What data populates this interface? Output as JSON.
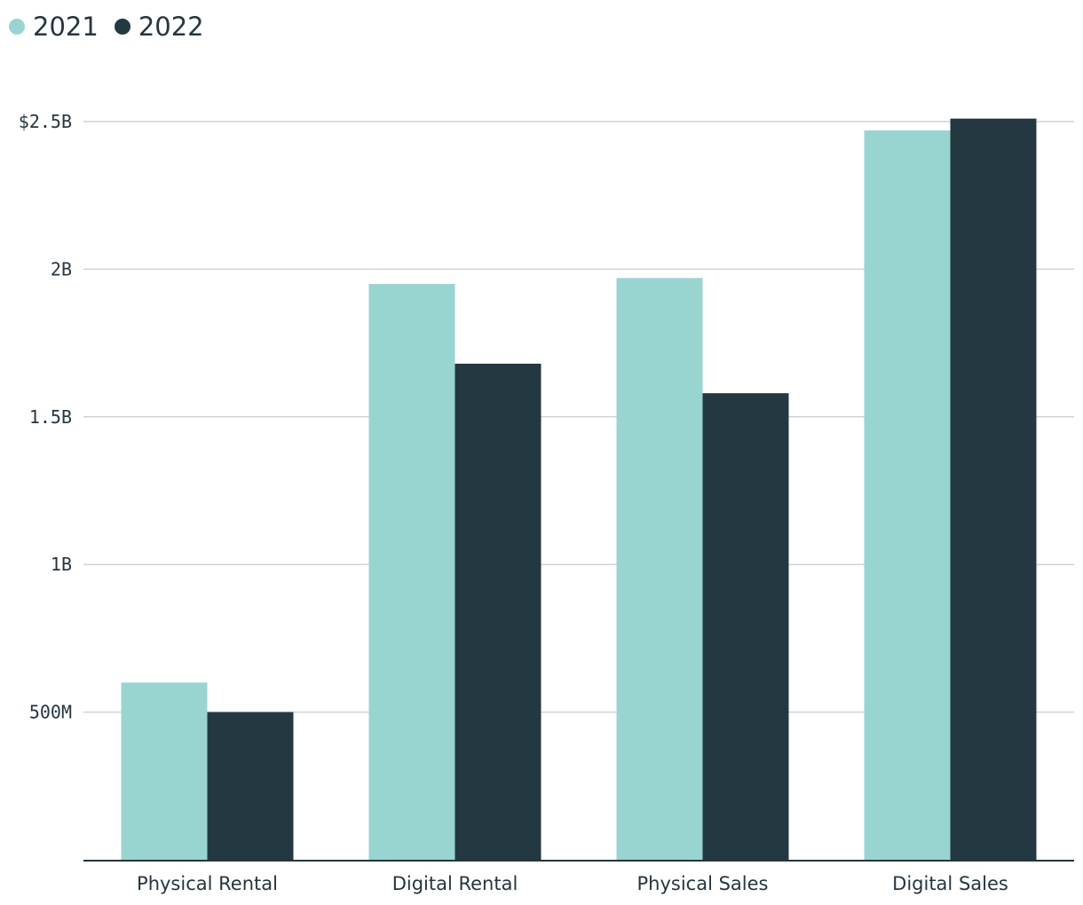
{
  "legend": [
    {
      "label": "2021",
      "color": "#98d5d1"
    },
    {
      "label": "2022",
      "color": "#243842"
    }
  ],
  "chart_data": {
    "type": "bar",
    "categories": [
      "Physical Rental",
      "Digital Rental",
      "Physical Sales",
      "Digital Sales"
    ],
    "series": [
      {
        "name": "2021",
        "values": [
          600000000,
          1950000000,
          1970000000,
          2470000000
        ]
      },
      {
        "name": "2022",
        "values": [
          500000000,
          1680000000,
          1580000000,
          2510000000
        ]
      }
    ],
    "ylim": [
      0,
      2500000000
    ],
    "yticks": [
      {
        "value": 500000000,
        "label": "500M"
      },
      {
        "value": 1000000000,
        "label": "1B"
      },
      {
        "value": 1500000000,
        "label": "1.5B"
      },
      {
        "value": 2000000000,
        "label": "2B"
      },
      {
        "value": 2500000000,
        "label": "$2.5B"
      }
    ],
    "grid": true,
    "legend_position": "top-left",
    "title": "",
    "xlabel": "",
    "ylabel": ""
  }
}
